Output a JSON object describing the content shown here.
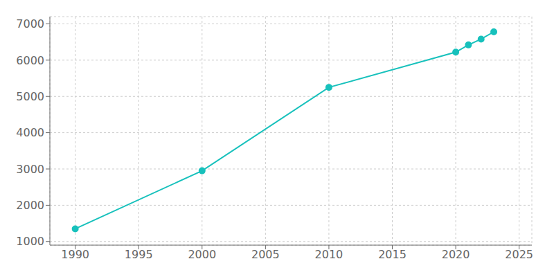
{
  "chart_data": {
    "type": "line",
    "x": [
      1990,
      2000,
      2010,
      2020,
      2021,
      2022,
      2023
    ],
    "values": [
      1350,
      2950,
      5250,
      6220,
      6420,
      6580,
      6780
    ],
    "color": "#17c1bc",
    "marker": "circle",
    "xlim": [
      1988,
      2026
    ],
    "ylim": [
      900,
      7200
    ],
    "xticks": [
      1990,
      1995,
      2000,
      2005,
      2010,
      2015,
      2020,
      2025
    ],
    "yticks": [
      1000,
      2000,
      3000,
      4000,
      5000,
      6000,
      7000
    ],
    "grid": true
  }
}
